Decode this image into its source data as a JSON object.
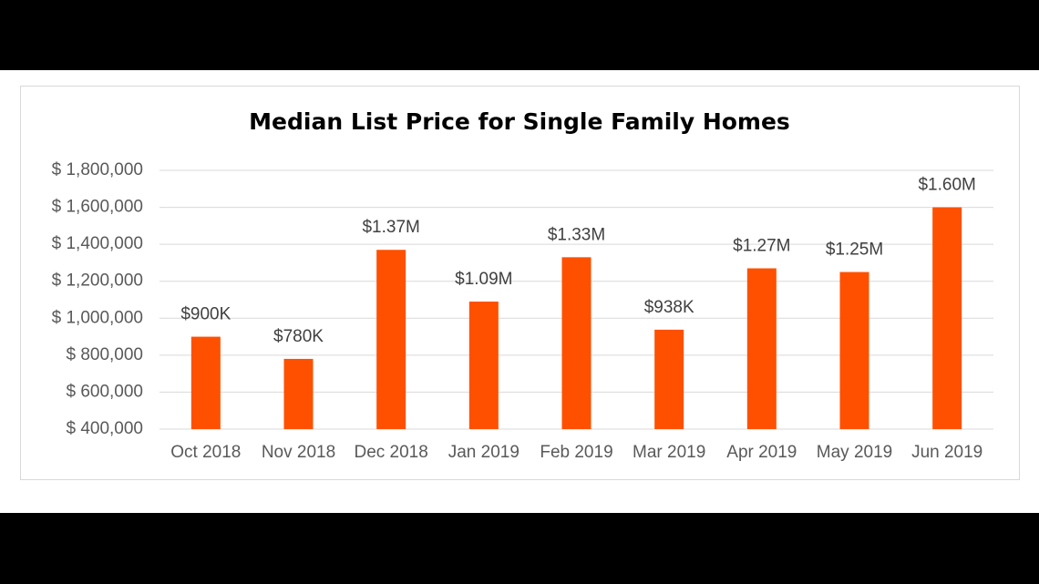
{
  "chart_data": {
    "type": "bar",
    "title": "Median List Price for Single Family Homes",
    "categories": [
      "Oct 2018",
      "Nov 2018",
      "Dec 2018",
      "Jan 2019",
      "Feb 2019",
      "Mar 2019",
      "Apr 2019",
      "May 2019",
      "Jun 2019"
    ],
    "values": [
      900000,
      780000,
      1370000,
      1090000,
      1330000,
      938000,
      1270000,
      1250000,
      1600000
    ],
    "value_labels": [
      "$900K",
      "$780K",
      "$1.37M",
      "$1.09M",
      "$1.33M",
      "$938K",
      "$1.27M",
      "$1.25M",
      "$1.60M"
    ],
    "color": "#ff5000",
    "ylim": [
      400000,
      1800000
    ],
    "yticks": [
      {
        "value": 400000,
        "label": "$ 400,000"
      },
      {
        "value": 600000,
        "label": "$ 600,000"
      },
      {
        "value": 800000,
        "label": "$ 800,000"
      },
      {
        "value": 1000000,
        "label": "$ 1,000,000"
      },
      {
        "value": 1200000,
        "label": "$ 1,200,000"
      },
      {
        "value": 1400000,
        "label": "$ 1,400,000"
      },
      {
        "value": 1600000,
        "label": "$ 1,600,000"
      },
      {
        "value": 1800000,
        "label": "$ 1,800,000"
      }
    ],
    "grid": true
  }
}
